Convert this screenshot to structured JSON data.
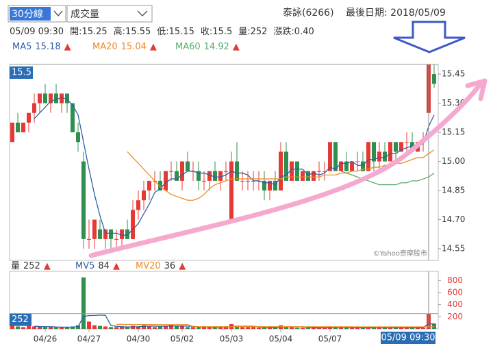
{
  "header": {
    "period_select": "30分線",
    "indicator_select": "成交量",
    "stock": "泰詠(6266)",
    "last_date": "最後日期: 2018/05/09",
    "info": [
      "05/09 09:30",
      "開:15.25",
      "高:15.55",
      "低:15.15",
      "收:15.5",
      "量:252",
      "漲跌:0.40"
    ]
  },
  "chart_data": [
    {
      "type": "candlestick",
      "up_color": "#e53935",
      "down_color": "#2f8f4e",
      "ylim": [
        14.49,
        15.5
      ],
      "yticks": [
        14.55,
        {
          "value": 14.7,
          "label": "14.70"
        },
        14.85,
        {
          "value": 15,
          "label": "15.00"
        },
        15.15,
        {
          "value": 15.3,
          "label": "15.30"
        },
        15.45
      ],
      "cursor_index": 76,
      "cursor_value": 15.5,
      "watermark": "©Yahoo奇摩股市",
      "ohlc": [
        [
          15.1,
          15.2,
          15.1,
          15.2
        ],
        [
          15.2,
          15.25,
          15.15,
          15.15
        ],
        [
          15.15,
          15.2,
          15.15,
          15.2
        ],
        [
          15.2,
          15.25,
          15.15,
          15.25
        ],
        [
          15.25,
          15.35,
          15.2,
          15.3
        ],
        [
          15.3,
          15.35,
          15.25,
          15.35
        ],
        [
          15.35,
          15.4,
          15.3,
          15.3
        ],
        [
          15.3,
          15.35,
          15.25,
          15.35
        ],
        [
          15.35,
          15.4,
          15.3,
          15.3
        ],
        [
          15.3,
          15.35,
          15.25,
          15.35
        ],
        [
          15.35,
          15.35,
          15.25,
          15.3
        ],
        [
          15.3,
          15.3,
          15.15,
          15.15
        ],
        [
          15.15,
          15.2,
          15.05,
          15.1
        ],
        [
          15,
          15.05,
          14.55,
          14.6
        ],
        [
          14.6,
          14.7,
          14.55,
          14.6
        ],
        [
          14.6,
          14.7,
          14.55,
          14.7
        ],
        [
          14.65,
          14.7,
          14.6,
          14.6
        ],
        [
          14.6,
          14.65,
          14.55,
          14.65
        ],
        [
          14.65,
          14.65,
          14.55,
          14.6
        ],
        [
          14.6,
          14.65,
          14.55,
          14.6
        ],
        [
          14.6,
          14.65,
          14.55,
          14.65
        ],
        [
          14.65,
          14.7,
          14.6,
          14.6
        ],
        [
          14.6,
          14.8,
          14.6,
          14.75
        ],
        [
          14.75,
          14.85,
          14.7,
          14.8
        ],
        [
          14.8,
          14.9,
          14.75,
          14.85
        ],
        [
          14.85,
          14.9,
          14.8,
          14.9
        ],
        [
          14.9,
          14.95,
          14.85,
          14.9
        ],
        [
          14.9,
          14.95,
          14.85,
          14.85
        ],
        [
          14.85,
          14.95,
          14.85,
          14.95
        ],
        [
          14.95,
          15,
          14.9,
          14.95
        ],
        [
          14.95,
          15,
          14.9,
          14.9
        ],
        [
          14.9,
          15,
          14.85,
          15
        ],
        [
          15,
          15.05,
          14.95,
          14.95
        ],
        [
          14.95,
          15,
          14.9,
          14.95
        ],
        [
          14.95,
          15,
          14.85,
          14.9
        ],
        [
          14.9,
          14.95,
          14.85,
          14.9
        ],
        [
          14.9,
          14.95,
          14.85,
          14.95
        ],
        [
          14.95,
          15,
          14.9,
          14.9
        ],
        [
          14.9,
          14.95,
          14.85,
          14.95
        ],
        [
          14.95,
          15,
          14.9,
          14.95
        ],
        [
          14.7,
          15.05,
          14.7,
          15
        ],
        [
          15,
          15.1,
          14.9,
          14.9
        ],
        [
          14.9,
          14.95,
          14.85,
          14.9
        ],
        [
          14.9,
          14.95,
          14.85,
          14.9
        ],
        [
          14.9,
          14.95,
          14.85,
          14.9
        ],
        [
          14.9,
          14.95,
          14.85,
          14.9
        ],
        [
          14.9,
          14.95,
          14.8,
          14.85
        ],
        [
          14.85,
          14.9,
          14.8,
          14.9
        ],
        [
          14.9,
          14.95,
          14.85,
          14.85
        ],
        [
          14.85,
          15.1,
          14.85,
          15.05
        ],
        [
          15.05,
          15.1,
          14.9,
          14.9
        ],
        [
          14.9,
          15,
          14.9,
          15
        ],
        [
          15,
          15,
          14.9,
          14.9
        ],
        [
          14.9,
          14.95,
          14.9,
          14.95
        ],
        [
          14.95,
          14.95,
          14.9,
          14.9
        ],
        [
          14.9,
          14.95,
          14.9,
          14.95
        ],
        [
          14.95,
          15,
          14.9,
          14.95
        ],
        [
          14.95,
          15,
          14.9,
          14.95
        ],
        [
          14.95,
          15.1,
          14.95,
          15.1
        ],
        [
          15.1,
          15.1,
          14.95,
          14.95
        ],
        [
          14.95,
          15,
          14.95,
          15
        ],
        [
          15,
          15.05,
          14.95,
          14.95
        ],
        [
          14.95,
          15,
          14.95,
          15
        ],
        [
          15,
          15.05,
          14.95,
          15
        ],
        [
          15,
          15.05,
          14.95,
          14.95
        ],
        [
          14.95,
          15.1,
          14.95,
          15.1
        ],
        [
          15.1,
          15.1,
          14.95,
          15
        ],
        [
          15,
          15.1,
          14.95,
          15.05
        ],
        [
          15.05,
          15.1,
          15,
          15
        ],
        [
          15,
          15.1,
          15,
          15.1
        ],
        [
          15.1,
          15.1,
          15,
          15.05
        ],
        [
          15.05,
          15.1,
          15.05,
          15.1
        ],
        [
          15.1,
          15.15,
          15.05,
          15.1
        ],
        [
          15.1,
          15.15,
          15.05,
          15.05
        ],
        [
          15.05,
          15.1,
          15.05,
          15.1
        ],
        [
          15.1,
          15.15,
          15.05,
          15.1
        ],
        [
          15.25,
          15.55,
          15.15,
          15.5
        ],
        [
          15.45,
          15.5,
          15.38,
          15.4
        ]
      ],
      "series": [
        {
          "name": "MA5",
          "color": "#2f5ea8",
          "legend_value": 15.18,
          "trend_symbol": "▲",
          "values": [
            null,
            null,
            null,
            null,
            15.22,
            15.25,
            15.28,
            15.31,
            15.32,
            15.33,
            15.32,
            15.29,
            15.24,
            15.1,
            14.96,
            14.83,
            14.72,
            14.63,
            14.63,
            14.63,
            14.62,
            14.62,
            14.65,
            14.68,
            14.73,
            14.78,
            14.84,
            14.86,
            14.89,
            14.91,
            14.91,
            14.93,
            14.95,
            14.95,
            14.94,
            14.94,
            14.93,
            14.92,
            14.92,
            14.93,
            14.95,
            14.94,
            14.94,
            14.93,
            14.9,
            14.9,
            14.89,
            14.89,
            14.88,
            14.92,
            14.93,
            14.96,
            14.96,
            14.96,
            14.93,
            14.94,
            14.93,
            14.94,
            14.97,
            14.96,
            14.99,
            14.99,
            15,
            14.98,
            14.98,
            15.01,
            15.01,
            15.02,
            15.02,
            15.04,
            15.04,
            15.06,
            15.07,
            15.08,
            15.08,
            15.09,
            15.18,
            15.24
          ]
        },
        {
          "name": "MA20",
          "color": "#f08a24",
          "legend_value": 15.04,
          "trend_symbol": "▲",
          "values": [
            null,
            null,
            null,
            null,
            null,
            null,
            null,
            null,
            null,
            null,
            null,
            null,
            null,
            null,
            null,
            null,
            null,
            null,
            null,
            null,
            null,
            15.05,
            15.02,
            14.99,
            14.96,
            14.93,
            14.9,
            14.87,
            14.85,
            14.83,
            14.82,
            14.81,
            14.8,
            14.8,
            14.81,
            14.83,
            14.86,
            14.88,
            14.89,
            14.9,
            14.91,
            14.91,
            14.91,
            14.91,
            14.91,
            14.91,
            14.91,
            14.91,
            14.91,
            14.91,
            14.92,
            14.92,
            14.92,
            14.92,
            14.92,
            14.92,
            14.92,
            14.93,
            14.93,
            14.93,
            14.94,
            14.94,
            14.95,
            14.95,
            14.96,
            14.96,
            14.97,
            14.97,
            14.98,
            14.98,
            14.99,
            14.99,
            15,
            15.01,
            15.02,
            15.02,
            15.04,
            15.06
          ]
        },
        {
          "name": "MA60",
          "color": "#5aab6e",
          "legend_value": 14.92,
          "trend_symbol": "▲",
          "values": [
            null,
            null,
            null,
            null,
            null,
            null,
            null,
            null,
            null,
            null,
            null,
            null,
            null,
            null,
            null,
            null,
            null,
            null,
            null,
            null,
            null,
            null,
            null,
            null,
            null,
            null,
            null,
            null,
            null,
            null,
            null,
            null,
            null,
            null,
            null,
            null,
            null,
            null,
            null,
            null,
            null,
            null,
            null,
            null,
            null,
            null,
            null,
            null,
            null,
            null,
            null,
            null,
            null,
            null,
            null,
            null,
            null,
            null,
            null,
            null,
            14.95,
            14.94,
            14.93,
            14.92,
            14.91,
            14.9,
            14.89,
            14.88,
            14.88,
            14.88,
            14.88,
            14.89,
            14.89,
            14.9,
            14.9,
            14.91,
            14.92,
            14.94
          ]
        }
      ]
    },
    {
      "type": "bar",
      "legend_label": "量",
      "legend_value": 252,
      "trend_symbol": "▲",
      "ylim": [
        0,
        950
      ],
      "yticks": [
        200,
        400,
        600,
        800
      ],
      "xticks": [
        {
          "value": 6,
          "label": "04/26"
        },
        {
          "value": 14,
          "label": "04/27"
        },
        {
          "value": 23,
          "label": "04/30"
        },
        {
          "value": 31,
          "label": "05/02"
        },
        {
          "value": 40,
          "label": "05/03"
        },
        {
          "value": 49,
          "label": "05/04"
        },
        {
          "value": 58,
          "label": "05/07"
        }
      ],
      "cursor_index": 76,
      "cursor_label": "05/09 09:30",
      "cursor_value": 252,
      "values": [
        60,
        40,
        30,
        50,
        40,
        35,
        30,
        30,
        25,
        30,
        30,
        40,
        60,
        850,
        120,
        60,
        50,
        40,
        30,
        30,
        30,
        30,
        50,
        40,
        60,
        50,
        30,
        40,
        50,
        70,
        40,
        40,
        30,
        30,
        30,
        30,
        30,
        30,
        30,
        30,
        80,
        50,
        30,
        30,
        30,
        20,
        20,
        20,
        20,
        60,
        40,
        30,
        20,
        20,
        20,
        20,
        20,
        20,
        40,
        30,
        20,
        20,
        20,
        20,
        20,
        30,
        20,
        30,
        20,
        20,
        20,
        30,
        20,
        20,
        20,
        20,
        252,
        90
      ],
      "series": [
        {
          "name": "MV5",
          "color": "#2f5ea8",
          "legend_value": 84,
          "trend_symbol": "▲",
          "values": [
            null,
            null,
            null,
            null,
            44,
            39,
            37,
            37,
            32,
            30,
            29,
            31,
            37,
            204,
            220,
            222,
            228,
            224,
            56,
            42,
            36,
            32,
            34,
            36,
            42,
            46,
            46,
            44,
            46,
            48,
            46,
            48,
            46,
            42,
            34,
            32,
            30,
            30,
            30,
            30,
            40,
            44,
            44,
            44,
            44,
            32,
            26,
            24,
            22,
            28,
            32,
            34,
            34,
            34,
            26,
            22,
            20,
            20,
            24,
            26,
            26,
            26,
            26,
            22,
            20,
            22,
            22,
            24,
            24,
            24,
            22,
            24,
            22,
            22,
            22,
            22,
            84,
            80
          ]
        },
        {
          "name": "MV20",
          "color": "#f08a24",
          "legend_value": 36,
          "trend_symbol": "▲",
          "values": [
            null,
            null,
            null,
            null,
            null,
            null,
            null,
            null,
            null,
            null,
            null,
            null,
            null,
            null,
            null,
            null,
            null,
            null,
            null,
            75,
            74,
            73,
            72,
            72,
            72,
            72,
            71,
            71,
            71,
            70,
            70,
            70,
            70,
            38,
            37,
            37,
            36,
            36,
            36,
            36,
            36,
            38,
            38,
            38,
            37,
            37,
            36,
            36,
            36,
            36,
            36,
            36,
            36,
            35,
            35,
            35,
            35,
            35,
            35,
            35,
            35,
            35,
            35,
            34,
            34,
            34,
            34,
            34,
            34,
            34,
            34,
            34,
            34,
            34,
            34,
            34,
            36,
            36
          ]
        }
      ]
    }
  ]
}
